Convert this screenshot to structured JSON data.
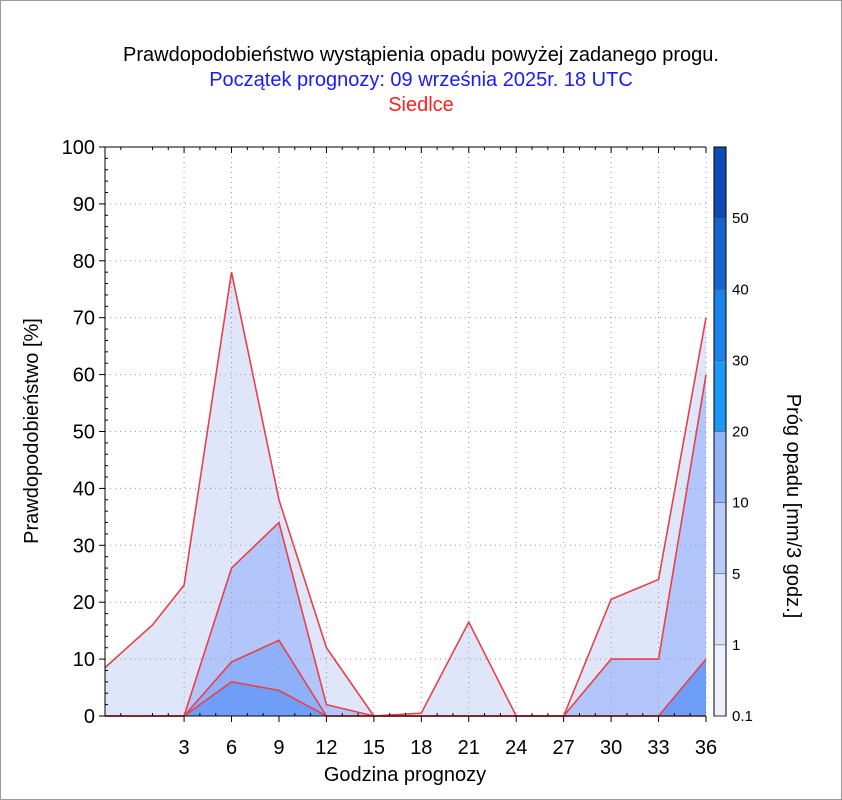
{
  "title": "Prawdopodobieństwo wystąpienia opadu powyżej zadanego progu.",
  "subtitle": "Początek prognozy: 09 września 2025r. 18 UTC",
  "location": "Siedlce",
  "colors": {
    "title": "#000000",
    "subtitle": "#1a1aff",
    "location": "#ff2020",
    "line": "#e8404a"
  },
  "chart_data": {
    "type": "area",
    "title": "Prawdopodobieństwo wystąpienia opadu powyżej zadanego progu.",
    "xlabel": "Godzina prognozy",
    "ylabel": "Prawdopodobieństwo [%]",
    "colorbar_label": "Próg opadu [mm/3 godz.]",
    "xlim": [
      -2,
      36
    ],
    "ylim": [
      0,
      100
    ],
    "xticks": [
      3,
      6,
      9,
      12,
      15,
      18,
      21,
      24,
      27,
      30,
      33,
      36
    ],
    "yticks": [
      0,
      10,
      20,
      30,
      40,
      50,
      60,
      70,
      80,
      90,
      100
    ],
    "x": [
      -2,
      1,
      3,
      6,
      9,
      12,
      15,
      18,
      21,
      24,
      27,
      30,
      33,
      36
    ],
    "series": [
      {
        "threshold": 0.1,
        "color": "#e0e6fa",
        "values": [
          8.5,
          16,
          23,
          78,
          38,
          12,
          0,
          0.5,
          16.5,
          0,
          0,
          20.5,
          24,
          70
        ]
      },
      {
        "threshold": 1,
        "color": "#b2c6fb",
        "values": [
          0,
          0,
          0,
          26,
          34,
          2,
          0,
          0,
          0,
          0,
          0,
          10,
          10,
          60
        ]
      },
      {
        "threshold": 5,
        "color": "#8eb0fa",
        "values": [
          0,
          0,
          0,
          9.5,
          13.3,
          0,
          0,
          0,
          0,
          0,
          0,
          0,
          0,
          0
        ]
      },
      {
        "threshold": 10,
        "color": "#6e9ef7",
        "values": [
          0,
          0,
          0,
          6,
          4.5,
          0,
          0,
          0,
          0,
          0,
          0,
          0,
          0,
          10
        ]
      }
    ],
    "colorbar": {
      "tick_labels": [
        "0.1",
        "1",
        "5",
        "10",
        "20",
        "30",
        "40",
        "50"
      ],
      "bands": [
        {
          "color": "#eef1fe"
        },
        {
          "color": "#d9e1fc"
        },
        {
          "color": "#b9cbfa"
        },
        {
          "color": "#94b4f8"
        },
        {
          "color": "#1c98f5"
        },
        {
          "color": "#1b82ea"
        },
        {
          "color": "#1565d0"
        },
        {
          "color": "#0f4bb6"
        },
        {
          "color": "#0a3a9e"
        }
      ]
    },
    "grid": true
  }
}
